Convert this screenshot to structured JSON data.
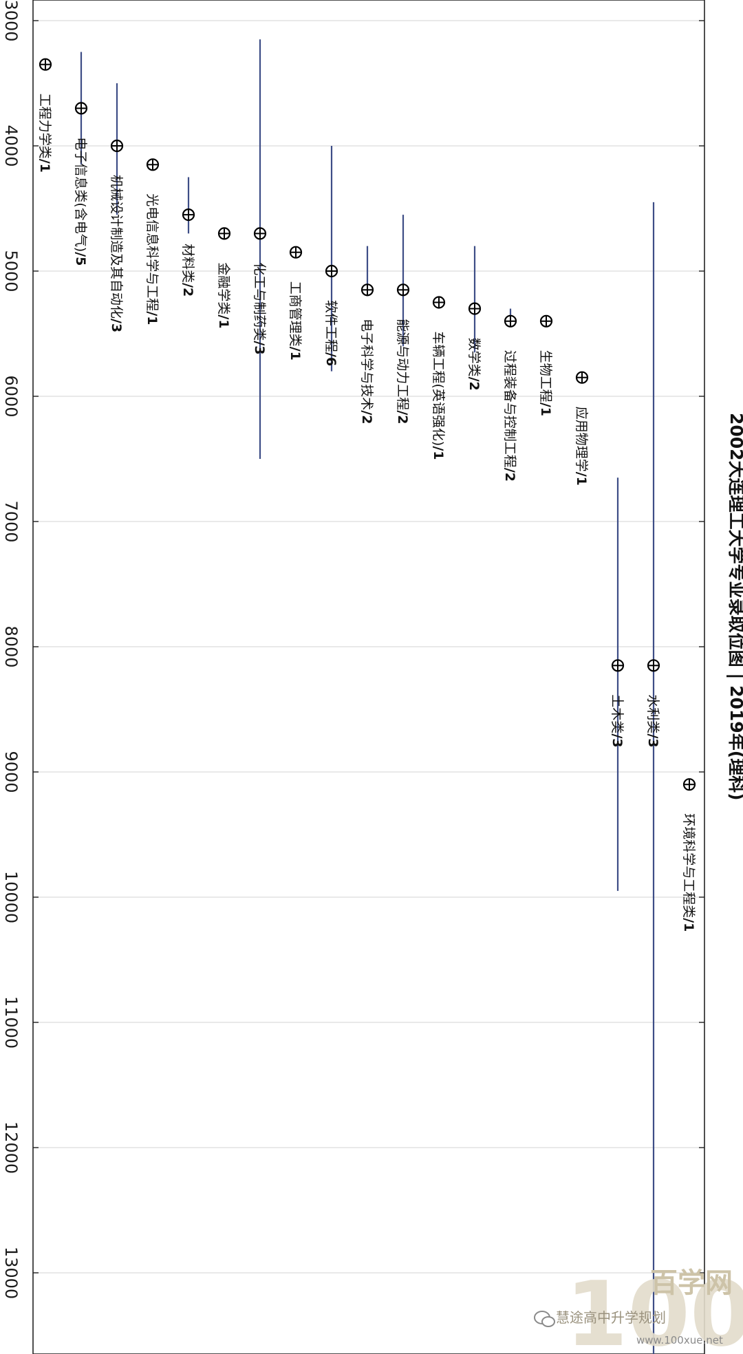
{
  "chart_data": {
    "type": "range-dot",
    "title": "2002大连理工大学专业录取位图 | 2019年(理科)",
    "xlabel": "",
    "ylabel": "",
    "range_axis": {
      "min": 2900,
      "max": 13700
    },
    "ticks": [
      3000,
      4000,
      5000,
      6000,
      7000,
      8000,
      9000,
      10000,
      11000,
      12000,
      13000
    ],
    "grid": true,
    "items": [
      {
        "name": "工程力学类",
        "count": 1,
        "value": 3350,
        "low": null,
        "high": null
      },
      {
        "name": "电子信息类(含电气)",
        "count": 5,
        "value": 3700,
        "low": 3250,
        "high": 4150
      },
      {
        "name": "机械设计制造及其自动化",
        "count": 3,
        "value": 4000,
        "low": 3500,
        "high": 4550
      },
      {
        "name": "光电信息科学与工程",
        "count": 1,
        "value": 4150,
        "low": null,
        "high": null
      },
      {
        "name": "材料类",
        "count": 2,
        "value": 4550,
        "low": 4250,
        "high": 4700
      },
      {
        "name": "金融学类",
        "count": 1,
        "value": 4700,
        "low": null,
        "high": null
      },
      {
        "name": "化工与制药类",
        "count": 3,
        "value": 4700,
        "low": 3150,
        "high": 6500
      },
      {
        "name": "工商管理类",
        "count": 1,
        "value": 4850,
        "low": null,
        "high": null
      },
      {
        "name": "软件工程",
        "count": 6,
        "value": 5000,
        "low": 4000,
        "high": 5800
      },
      {
        "name": "电子科学与技术",
        "count": 2,
        "value": 5150,
        "low": 4800,
        "high": 5200
      },
      {
        "name": "能源与动力工程",
        "count": 2,
        "value": 5150,
        "low": 4550,
        "high": 5600
      },
      {
        "name": "车辆工程(英语强化)",
        "count": 1,
        "value": 5250,
        "low": null,
        "high": null
      },
      {
        "name": "数学类",
        "count": 2,
        "value": 5300,
        "low": 4800,
        "high": 5650
      },
      {
        "name": "过程装备与控制工程",
        "count": 2,
        "value": 5400,
        "low": 5300,
        "high": 5400
      },
      {
        "name": "生物工程",
        "count": 1,
        "value": 5400,
        "low": null,
        "high": null
      },
      {
        "name": "应用物理学",
        "count": 1,
        "value": 5850,
        "low": null,
        "high": null
      },
      {
        "name": "土木类",
        "count": 3,
        "value": 8150,
        "low": 6650,
        "high": 9950
      },
      {
        "name": "水利类",
        "count": 3,
        "value": 8150,
        "low": 4450,
        "high": 13900
      },
      {
        "name": "环境科学与工程类",
        "count": 1,
        "value": 9100,
        "low": null,
        "high": null
      }
    ],
    "colors": {
      "line": "#3d4d86",
      "marker": "#000000",
      "grid": "#e2e2e2",
      "axis": "#222222"
    }
  },
  "watermark": {
    "logo": "100",
    "brand": "百学网",
    "caption": "慧途高中升学规划",
    "url": "www.100xue.net",
    "icon": "wechat-icon"
  }
}
